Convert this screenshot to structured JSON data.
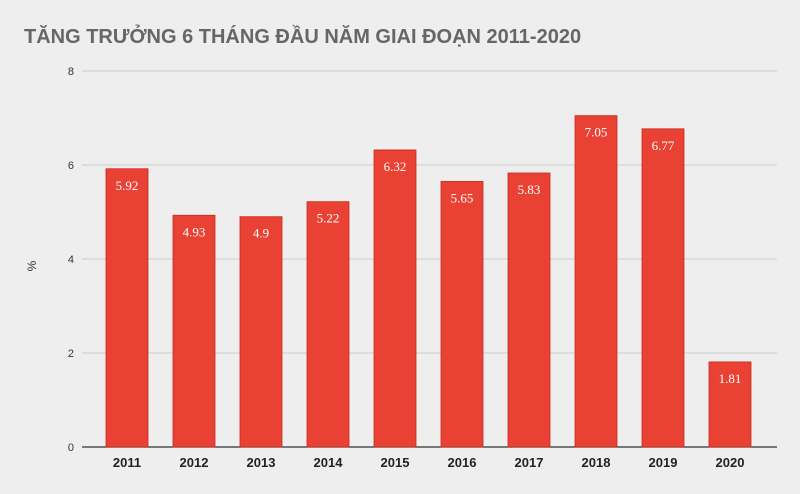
{
  "chart_data": {
    "type": "bar",
    "title": "TĂNG TRƯỞNG 6 THÁNG ĐẦU NĂM GIAI ĐOẠN 2011-2020",
    "xlabel": "",
    "ylabel": "%",
    "ylim": [
      0,
      8
    ],
    "yticks": [
      0,
      2,
      4,
      6,
      8
    ],
    "grid": true,
    "categories": [
      "2011",
      "2012",
      "2013",
      "2014",
      "2015",
      "2016",
      "2017",
      "2018",
      "2019",
      "2020"
    ],
    "values": [
      5.92,
      4.93,
      4.9,
      5.22,
      6.32,
      5.65,
      5.83,
      7.05,
      6.77,
      1.81
    ],
    "data_labels": [
      "5.92",
      "4.93",
      "4.9",
      "5.22",
      "6.32",
      "5.65",
      "5.83",
      "7.05",
      "6.77",
      "1.81"
    ],
    "colors": {
      "bar": "#e94234",
      "bar_edge": "#c62a1e",
      "title": "#666666",
      "grid": "#cccccc",
      "axis": "#333333",
      "label": "#ffffff"
    }
  }
}
